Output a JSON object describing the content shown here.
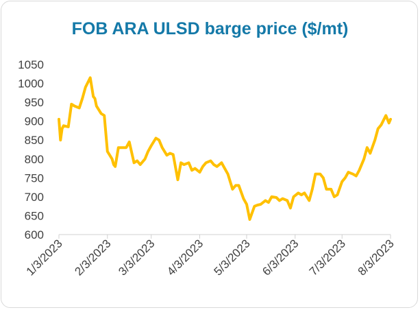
{
  "chart_data": {
    "type": "line",
    "title": "FOB ARA ULSD barge price ($/mt)",
    "xlabel": "",
    "ylabel": "",
    "ylim": [
      600,
      1050
    ],
    "yticks": [
      600,
      650,
      700,
      750,
      800,
      850,
      900,
      950,
      1000,
      1050
    ],
    "xticks": [
      "1/3/2023",
      "2/3/2023",
      "3/3/2023",
      "4/3/2023",
      "5/3/2023",
      "6/3/2023",
      "7/3/2023",
      "8/3/2023"
    ],
    "grid": false,
    "legend": "none",
    "line_color": "#ffc000",
    "series": [
      {
        "x": [
          "2023-01-03",
          "2023-01-04",
          "2023-01-05",
          "2023-01-06",
          "2023-01-09",
          "2023-01-11",
          "2023-01-13",
          "2023-01-16",
          "2023-01-18",
          "2023-01-20",
          "2023-01-23",
          "2023-01-25",
          "2023-01-26",
          "2023-01-27",
          "2023-01-30",
          "2023-02-01",
          "2023-02-03",
          "2023-02-06",
          "2023-02-07",
          "2023-02-08",
          "2023-02-10",
          "2023-02-13",
          "2023-02-15",
          "2023-02-17",
          "2023-02-20",
          "2023-02-22",
          "2023-02-24",
          "2023-02-27",
          "2023-03-01",
          "2023-03-03",
          "2023-03-06",
          "2023-03-08",
          "2023-03-10",
          "2023-03-13",
          "2023-03-15",
          "2023-03-17",
          "2023-03-20",
          "2023-03-22",
          "2023-03-24",
          "2023-03-27",
          "2023-03-29",
          "2023-03-31",
          "2023-04-03",
          "2023-04-05",
          "2023-04-07",
          "2023-04-10",
          "2023-04-12",
          "2023-04-14",
          "2023-04-17",
          "2023-04-19",
          "2023-04-21",
          "2023-04-24",
          "2023-04-26",
          "2023-04-28",
          "2023-05-01",
          "2023-05-03",
          "2023-05-05",
          "2023-05-08",
          "2023-05-10",
          "2023-05-12",
          "2023-05-15",
          "2023-05-17",
          "2023-05-19",
          "2023-05-22",
          "2023-05-24",
          "2023-05-26",
          "2023-05-29",
          "2023-05-31",
          "2023-06-02",
          "2023-06-05",
          "2023-06-07",
          "2023-06-09",
          "2023-06-12",
          "2023-06-14",
          "2023-06-16",
          "2023-06-19",
          "2023-06-21",
          "2023-06-23",
          "2023-06-26",
          "2023-06-28",
          "2023-06-30",
          "2023-07-03",
          "2023-07-05",
          "2023-07-07",
          "2023-07-10",
          "2023-07-12",
          "2023-07-14",
          "2023-07-17",
          "2023-07-19",
          "2023-07-21",
          "2023-07-24",
          "2023-07-26",
          "2023-07-28",
          "2023-07-31",
          "2023-08-02",
          "2023-08-03"
        ],
        "y": [
          905,
          850,
          880,
          888,
          885,
          945,
          940,
          935,
          960,
          990,
          1015,
          965,
          960,
          940,
          920,
          915,
          820,
          800,
          785,
          780,
          830,
          830,
          830,
          845,
          790,
          795,
          785,
          800,
          820,
          835,
          855,
          850,
          830,
          810,
          815,
          812,
          745,
          790,
          785,
          790,
          770,
          775,
          765,
          780,
          790,
          795,
          785,
          780,
          790,
          775,
          760,
          720,
          730,
          730,
          695,
          680,
          640,
          675,
          678,
          680,
          690,
          685,
          700,
          698,
          690,
          695,
          690,
          670,
          700,
          710,
          705,
          710,
          690,
          720,
          760,
          760,
          750,
          720,
          720,
          700,
          705,
          740,
          750,
          765,
          760,
          755,
          770,
          800,
          830,
          815,
          850,
          880,
          890,
          915,
          895,
          905
        ]
      }
    ]
  }
}
